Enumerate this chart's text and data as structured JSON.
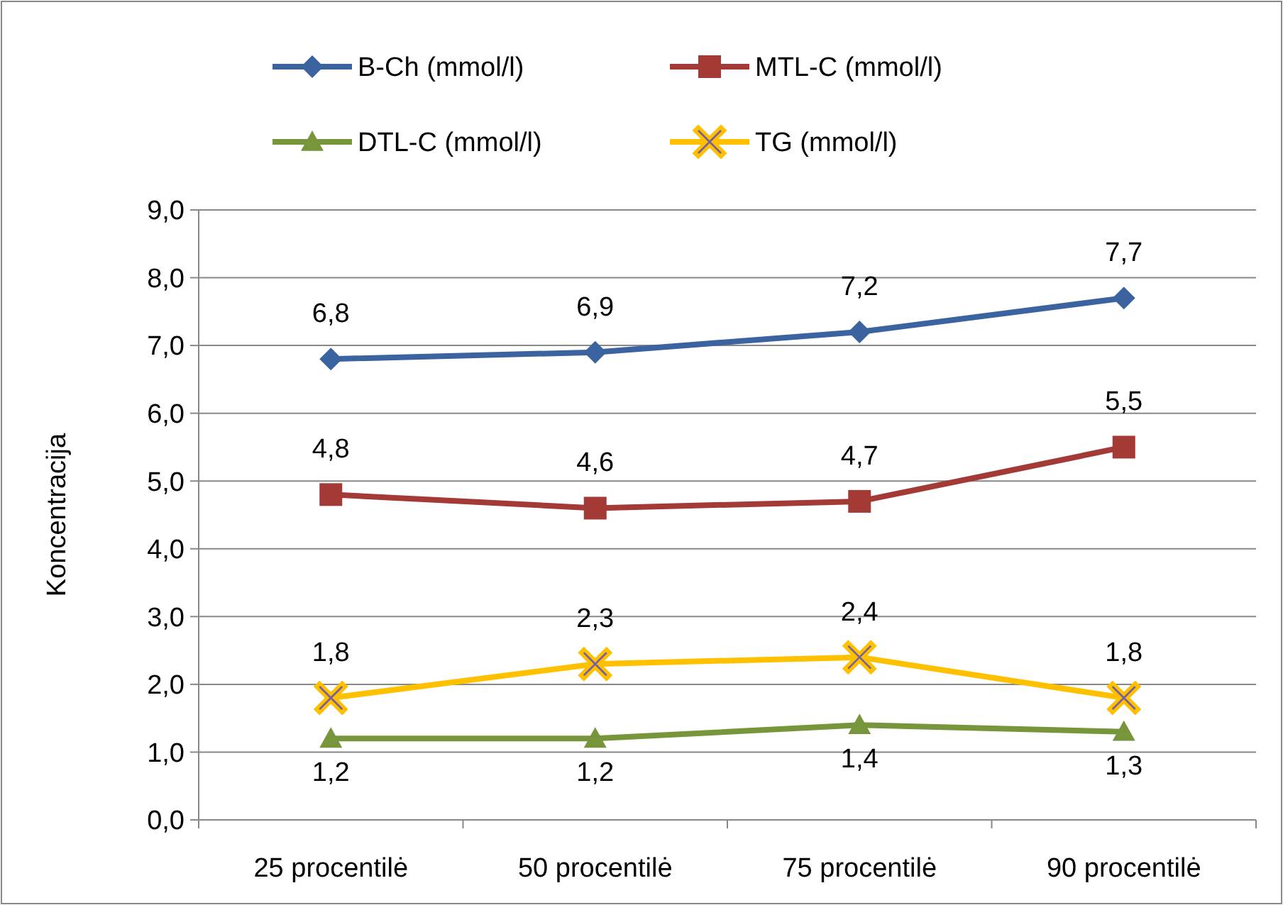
{
  "chart_data": {
    "type": "line",
    "ylabel": "Koncentracija",
    "categories": [
      "25 procentilė",
      "50 procentilė",
      "75 procentilė",
      "90 procentilė"
    ],
    "ylim": [
      0,
      9
    ],
    "yticks": [
      {
        "value": 0,
        "label": "0,0"
      },
      {
        "value": 1,
        "label": "1,0"
      },
      {
        "value": 2,
        "label": "2,0"
      },
      {
        "value": 3,
        "label": "3,0"
      },
      {
        "value": 4,
        "label": "4,0"
      },
      {
        "value": 5,
        "label": "5,0"
      },
      {
        "value": 6,
        "label": "6,0"
      },
      {
        "value": 7,
        "label": "7,0"
      },
      {
        "value": 8,
        "label": "8,0"
      },
      {
        "value": 9,
        "label": "9,0"
      }
    ],
    "grid": "y",
    "legend": "top",
    "line_style": "solid",
    "series": [
      {
        "name": "B-Ch (mmol/l)",
        "color": "#3a63a0",
        "marker": "diamond",
        "values": [
          6.8,
          6.9,
          7.2,
          7.7
        ],
        "value_labels": [
          "6,8",
          "6,9",
          "7,2",
          "7,7"
        ]
      },
      {
        "name": "MTL-C (mmol/l)",
        "color": "#a33a36",
        "marker": "square",
        "values": [
          4.8,
          4.6,
          4.7,
          5.5
        ],
        "value_labels": [
          "4,8",
          "4,6",
          "4,7",
          "5,5"
        ]
      },
      {
        "name": "DTL-C (mmol/l)",
        "color": "#77953a",
        "marker": "triangle",
        "values": [
          1.2,
          1.2,
          1.4,
          1.3
        ],
        "value_labels": [
          "1,2",
          "1,2",
          "1,4",
          "1,3"
        ]
      },
      {
        "name": "TG (mmol/l)",
        "color": "#ffc000",
        "marker": "cross",
        "values": [
          1.8,
          2.3,
          2.4,
          1.8
        ],
        "value_labels": [
          "1,8",
          "2,3",
          "2,4",
          "1,8"
        ]
      }
    ]
  }
}
